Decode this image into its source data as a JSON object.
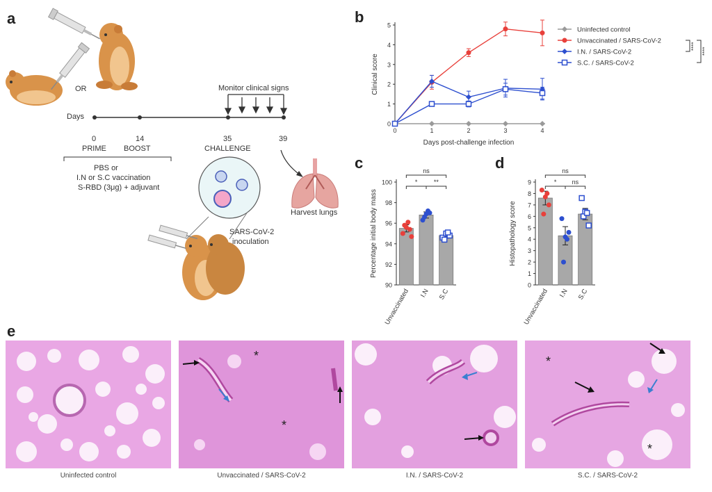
{
  "panel_labels": {
    "a": "a",
    "b": "b",
    "c": "c",
    "d": "d",
    "e": "e"
  },
  "schematic": {
    "or_label": "OR",
    "days_label": "Days",
    "monitor_label": "Monitor clinical signs",
    "timepoints": [
      {
        "day": "0",
        "event": "PRIME"
      },
      {
        "day": "14",
        "event": "BOOST"
      },
      {
        "day": "35",
        "event": "CHALLENGE"
      },
      {
        "day": "39",
        "event": ""
      }
    ],
    "vaccination_lines": [
      "PBS or",
      "I.N or S.C vaccination",
      "S-RBD (3μg) + adjuvant"
    ],
    "inoculation_lines": [
      "SARS-CoV-2",
      "inoculation"
    ],
    "harvest_label": "Harvest lungs"
  },
  "chart_data": [
    {
      "panel": "b",
      "type": "line",
      "xlabel": "Days post-challenge infection",
      "ylabel": "Clinical score",
      "x": [
        0,
        1,
        2,
        3,
        4
      ],
      "xlim": [
        0,
        4
      ],
      "ylim": [
        0,
        5
      ],
      "yticks": [
        0,
        1,
        2,
        3,
        4,
        5
      ],
      "legend_position": "right",
      "series": [
        {
          "name": "Uninfected control",
          "color": "#9a9a9a",
          "marker": "diamond",
          "values": [
            0,
            0,
            0,
            0,
            0
          ],
          "err": [
            0,
            0,
            0,
            0,
            0
          ]
        },
        {
          "name": "Unvaccinated / SARS-CoV-2",
          "color": "#e8403b",
          "marker": "circle",
          "values": [
            0,
            2.1,
            3.6,
            4.8,
            4.6
          ],
          "err": [
            0,
            0.35,
            0.2,
            0.35,
            0.65
          ]
        },
        {
          "name": "I.N. / SARS-CoV-2",
          "color": "#2d4fcf",
          "marker": "diamond",
          "values": [
            0,
            2.15,
            1.35,
            1.8,
            1.75
          ],
          "err": [
            0,
            0.3,
            0.3,
            0.45,
            0.55
          ]
        },
        {
          "name": "S.C. / SARS-CoV-2",
          "color": "#2d4fcf",
          "marker": "square-open",
          "values": [
            0,
            1.0,
            1.0,
            1.75,
            1.55
          ],
          "err": [
            0,
            0.1,
            0.15,
            0.3,
            0.3
          ]
        }
      ],
      "significance": [
        "****",
        "****"
      ]
    },
    {
      "panel": "c",
      "type": "bar",
      "ylabel": "Percentage initial body mass",
      "categories": [
        "Unvaccinated",
        "I.N",
        "S.C"
      ],
      "values": [
        95.5,
        96.8,
        94.8
      ],
      "err": [
        0.35,
        0.3,
        0.25
      ],
      "ylim": [
        90,
        100
      ],
      "yticks": [
        90,
        92,
        94,
        96,
        98,
        100
      ],
      "colors": [
        "#e8403b",
        "#2d4fcf",
        "#2d4fcf"
      ],
      "points": [
        [
          95.0,
          95.6,
          95.4,
          95.8,
          96.1,
          94.7
        ],
        [
          96.3,
          96.9,
          97.0,
          96.6,
          97.2
        ],
        [
          94.6,
          95.0,
          94.8,
          94.4,
          95.1
        ]
      ],
      "significance": [
        {
          "pair": [
            "Unvaccinated",
            "I.N"
          ],
          "label": "*"
        },
        {
          "pair": [
            "I.N",
            "S.C"
          ],
          "label": "**"
        },
        {
          "pair": [
            "Unvaccinated",
            "S.C"
          ],
          "label": "ns"
        }
      ]
    },
    {
      "panel": "d",
      "type": "bar",
      "ylabel": "Histopathology score",
      "categories": [
        "Unvaccinated",
        "I.N",
        "S.C"
      ],
      "values": [
        7.6,
        4.3,
        6.2
      ],
      "err": [
        0.6,
        0.8,
        0.5
      ],
      "ylim": [
        0,
        9
      ],
      "yticks": [
        0,
        1,
        2,
        3,
        4,
        5,
        6,
        7,
        8,
        9
      ],
      "colors": [
        "#e8403b",
        "#2d4fcf",
        "#2d4fcf"
      ],
      "points": [
        [
          8.3,
          7.7,
          7.0,
          6.2,
          8.0
        ],
        [
          5.8,
          4.2,
          4.6,
          2.0,
          4.0
        ],
        [
          7.6,
          6.4,
          5.2,
          6.0,
          6.3
        ]
      ],
      "significance": [
        {
          "pair": [
            "Unvaccinated",
            "I.N"
          ],
          "label": "*"
        },
        {
          "pair": [
            "I.N",
            "S.C"
          ],
          "label": "ns"
        },
        {
          "pair": [
            "Unvaccinated",
            "S.C"
          ],
          "label": "ns"
        }
      ]
    }
  ],
  "histology": [
    {
      "caption": "Uninfected control"
    },
    {
      "caption": "Unvaccinated / SARS-CoV-2"
    },
    {
      "caption": "I.N. / SARS-CoV-2"
    },
    {
      "caption": "S.C. / SARS-CoV-2"
    }
  ],
  "colors": {
    "histo_bg": "#f2c3ee",
    "histo_dense": "#d98ad6",
    "red": "#e8403b",
    "blue": "#2d4fcf",
    "bar": "#a8a8a8"
  }
}
